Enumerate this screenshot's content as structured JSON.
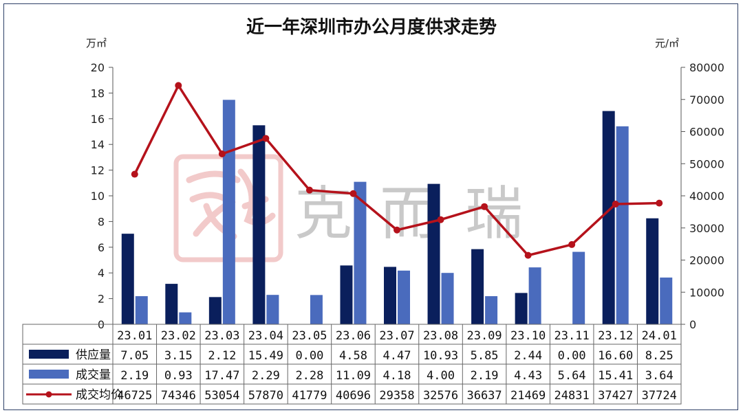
{
  "chart_data": {
    "type": "bar",
    "title": "近一年深圳市办公月度供求走势",
    "y_left_unit": "万㎡",
    "y_right_unit": "元/㎡",
    "ylim_left": [
      0,
      20
    ],
    "ylim_right": [
      0,
      80000
    ],
    "yticks_left": [
      "0",
      "2",
      "4",
      "6",
      "8",
      "10",
      "12",
      "14",
      "16",
      "18",
      "20"
    ],
    "yticks_right": [
      "0",
      "10000",
      "20000",
      "30000",
      "40000",
      "50000",
      "60000",
      "70000",
      "80000"
    ],
    "categories": [
      "23.01",
      "23.02",
      "23.03",
      "23.04",
      "23.05",
      "23.06",
      "23.07",
      "23.08",
      "23.09",
      "23.10",
      "23.11",
      "23.12",
      "24.01"
    ],
    "series": [
      {
        "name": "供应量",
        "type": "bar",
        "axis": "left",
        "color": "#0a1f5c",
        "values": [
          7.05,
          3.15,
          2.12,
          15.49,
          0.0,
          4.58,
          4.47,
          10.93,
          5.85,
          2.44,
          0.0,
          16.6,
          8.25
        ],
        "labels": [
          "7.05",
          "3.15",
          "2.12",
          "15.49",
          "0.00",
          "4.58",
          "4.47",
          "10.93",
          "5.85",
          "2.44",
          "0.00",
          "16.60",
          "8.25"
        ]
      },
      {
        "name": "成交量",
        "type": "bar",
        "axis": "left",
        "color": "#4a6bbd",
        "values": [
          2.19,
          0.93,
          17.47,
          2.29,
          2.28,
          11.09,
          4.18,
          4.0,
          2.19,
          4.43,
          5.64,
          15.41,
          3.64
        ],
        "labels": [
          "2.19",
          "0.93",
          "17.47",
          "2.29",
          "2.28",
          "11.09",
          "4.18",
          "4.00",
          "2.19",
          "4.43",
          "5.64",
          "15.41",
          "3.64"
        ]
      },
      {
        "name": "成交均价",
        "type": "line",
        "axis": "right",
        "color": "#b5121b",
        "values": [
          46725,
          74346,
          53054,
          57870,
          41779,
          40696,
          29358,
          32576,
          36637,
          21469,
          24831,
          37427,
          37724
        ],
        "labels": [
          "46725",
          "74346",
          "53054",
          "57870",
          "41779",
          "40696",
          "29358",
          "32576",
          "36637",
          "21469",
          "24831",
          "37427",
          "37724"
        ]
      }
    ],
    "grid": false,
    "legend": "data-table-bottom",
    "watermark_text": "克而瑞"
  }
}
